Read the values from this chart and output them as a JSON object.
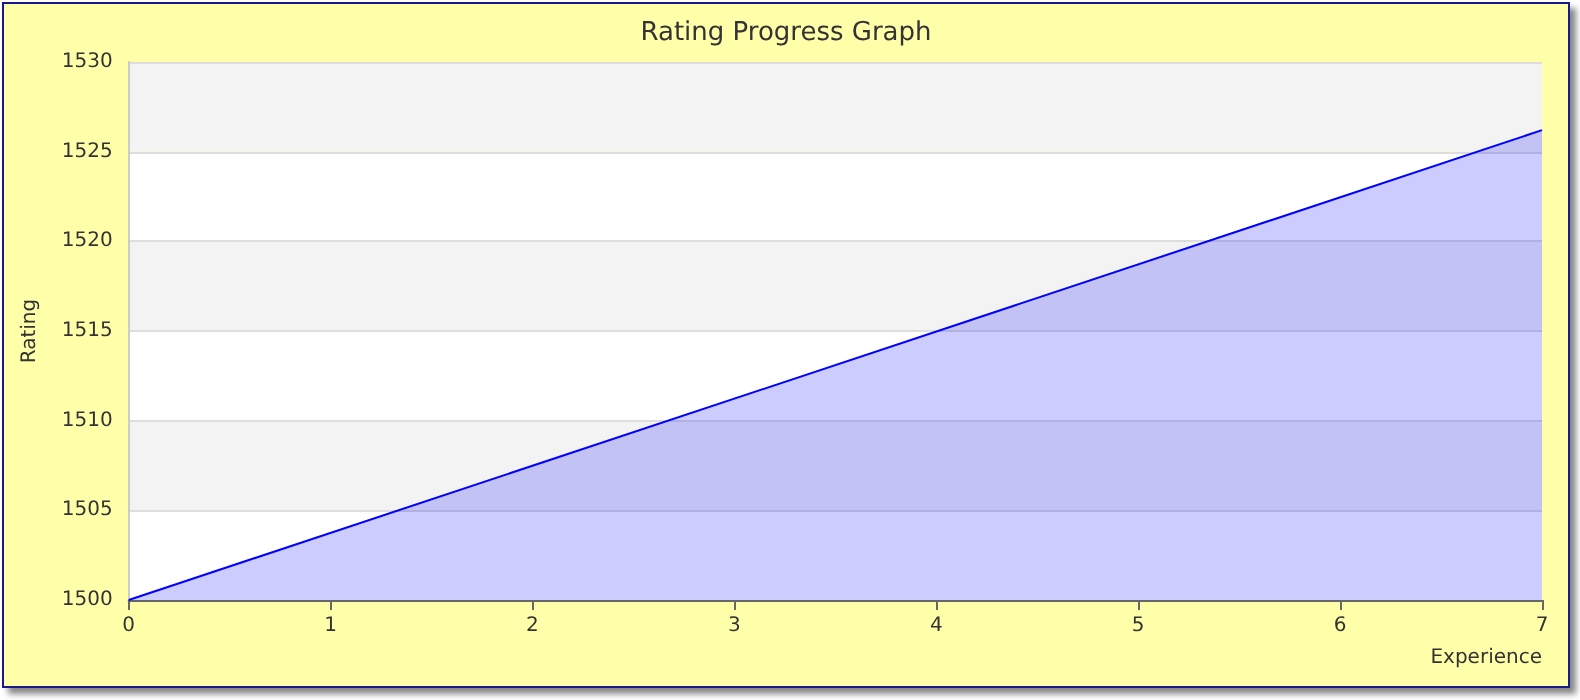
{
  "chart_data": {
    "type": "area",
    "title": "Rating Progress Graph",
    "xlabel": "Experience",
    "ylabel": "Rating",
    "x": [
      0,
      7
    ],
    "series": [
      {
        "color": "#0000ff",
        "values": [
          1500,
          1526.2
        ]
      }
    ],
    "xlim": [
      0,
      7
    ],
    "xticks": [
      0,
      1,
      2,
      3,
      4,
      5,
      6,
      7
    ],
    "ylim": [
      1500,
      1530
    ],
    "yticks": [
      1500,
      1505,
      1510,
      1515,
      1520,
      1525,
      1530
    ],
    "grid": "y",
    "marker": "none",
    "line_style": "solid"
  }
}
